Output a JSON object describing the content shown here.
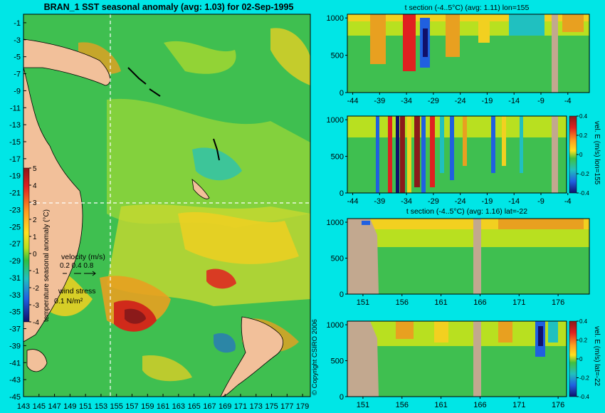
{
  "colors": {
    "background": "#00e6e6",
    "land": "#f2c09a",
    "bathy_gray": "#c2a88f",
    "grid": "#ffffff",
    "arrows": "#c25bd8"
  },
  "main_map": {
    "title": "BRAN_1  SST seasonal anomaly (avg: 1.03) for 02-Sep-1995",
    "y_ticks": [
      "-1",
      "-3",
      "-5",
      "-7",
      "-9",
      "-11",
      "-13",
      "-15",
      "-17",
      "-19",
      "-21",
      "-23",
      "-25",
      "-27",
      "-29",
      "-31",
      "-33",
      "-35",
      "-37",
      "-39",
      "-41",
      "-43",
      "-45"
    ],
    "x_ticks": [
      "143",
      "145",
      "147",
      "149",
      "151",
      "153",
      "155",
      "157",
      "159",
      "161",
      "163",
      "165",
      "167",
      "169",
      "171",
      "173",
      "175",
      "177",
      "179"
    ],
    "colorbar": {
      "label": "temperature seasonal anomaly (°C)",
      "ticks": [
        "5",
        "4",
        "3",
        "2",
        "1",
        "0",
        "-1",
        "-2",
        "-3",
        "-4"
      ]
    },
    "velocity_legend": {
      "title": "velocity (m/s)",
      "values": "0.2 0.4 0.8"
    },
    "wind_legend": {
      "title": "wind stress",
      "value": "0.1 N/m²"
    },
    "copyright": "© Copyright CSIRO 2006"
  },
  "panels": [
    {
      "title": "t section (-4..5°C) (avg: 1.11) lon=155",
      "x_ticks": [
        "-44",
        "-39",
        "-34",
        "-29",
        "-24",
        "-19",
        "-14",
        "-9",
        "-4"
      ],
      "y_ticks": [
        "0",
        "500",
        "1000"
      ],
      "side_label": ""
    },
    {
      "title": "",
      "x_ticks": [
        "-44",
        "-39",
        "-34",
        "-29",
        "-24",
        "-19",
        "-14",
        "-9",
        "-4"
      ],
      "y_ticks": [
        "0",
        "500",
        "1000"
      ],
      "side_label": "vel. E (m/s) lon=155",
      "colorbar_ticks": [
        "0.4",
        "0.2",
        "0",
        "-0.2",
        "-0.4"
      ]
    },
    {
      "title": "t section (-4..5°C) (avg: 1.16) lat=-22",
      "x_ticks": [
        "151",
        "156",
        "161",
        "166",
        "171",
        "176"
      ],
      "y_ticks": [
        "0",
        "500",
        "1000"
      ],
      "side_label": ""
    },
    {
      "title": "",
      "x_ticks": [
        "151",
        "156",
        "161",
        "166",
        "171",
        "176"
      ],
      "y_ticks": [
        "0",
        "500",
        "1000"
      ],
      "side_label": "vel. E (m/s) lat=-22",
      "colorbar_ticks": [
        "0.4",
        "0.2",
        "0",
        "-0.2",
        "-0.4"
      ]
    }
  ],
  "chart_data": [
    {
      "type": "heatmap",
      "title": "BRAN_1  SST seasonal anomaly (avg: 1.03) for 02-Sep-1995",
      "x_ticks": [
        143,
        145,
        147,
        149,
        151,
        153,
        155,
        157,
        159,
        161,
        163,
        165,
        167,
        169,
        171,
        173,
        175,
        177,
        179
      ],
      "y_ticks": [
        -1,
        -3,
        -5,
        -7,
        -9,
        -11,
        -13,
        -15,
        -17,
        -19,
        -21,
        -23,
        -25,
        -27,
        -29,
        -31,
        -33,
        -35,
        -37,
        -39,
        -41,
        -43,
        -45
      ],
      "xlim": [
        143,
        180
      ],
      "ylim": [
        -45,
        0
      ],
      "color_range": [
        -4,
        5
      ],
      "colorbar_label": "temperature seasonal anomaly (°C)",
      "crosshair": {
        "lon": 155,
        "lat": -22
      },
      "avg": 1.03
    },
    {
      "type": "heatmap",
      "title": "t section (-4..5°C) (avg: 1.11) lon=155",
      "x_ticks": [
        -44,
        -39,
        -34,
        -29,
        -24,
        -19,
        -14,
        -9,
        -4
      ],
      "y_ticks": [
        0,
        500,
        1000
      ],
      "xlim": [
        -45,
        0
      ],
      "ylim": [
        1050,
        0
      ],
      "color_range": [
        -4,
        5
      ],
      "avg": 1.11
    },
    {
      "type": "heatmap",
      "title": "",
      "x_ticks": [
        -44,
        -39,
        -34,
        -29,
        -24,
        -19,
        -14,
        -9,
        -4
      ],
      "y_ticks": [
        0,
        500,
        1000
      ],
      "xlim": [
        -45,
        0
      ],
      "ylim": [
        1050,
        0
      ],
      "color_range": [
        -0.4,
        0.4
      ],
      "colorbar_label": "vel. E (m/s) lon=155"
    },
    {
      "type": "heatmap",
      "title": "t section (-4..5°C) (avg: 1.16) lat=-22",
      "x_ticks": [
        151,
        156,
        161,
        166,
        171,
        176
      ],
      "y_ticks": [
        0,
        500,
        1000
      ],
      "xlim": [
        149,
        180
      ],
      "ylim": [
        1050,
        0
      ],
      "color_range": [
        -4,
        5
      ],
      "avg": 1.16
    },
    {
      "type": "heatmap",
      "title": "",
      "x_ticks": [
        151,
        156,
        161,
        166,
        171,
        176
      ],
      "y_ticks": [
        0,
        500,
        1000
      ],
      "xlim": [
        149,
        180
      ],
      "ylim": [
        1050,
        0
      ],
      "color_range": [
        -0.4,
        0.4
      ],
      "colorbar_label": "vel. E (m/s) lat=-22"
    }
  ]
}
